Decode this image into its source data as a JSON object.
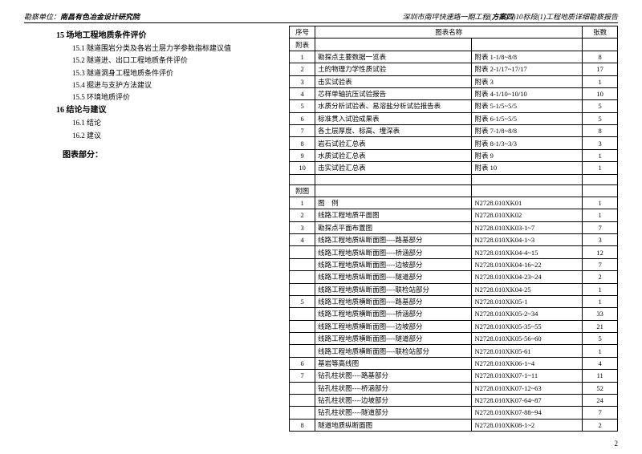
{
  "header": {
    "leftLabel": "勘察单位：",
    "leftOrg": "南昌有色冶金设计研究院",
    "rightPrefix": "深圳市南坪快速路一期工程(",
    "rightBold": "方案四",
    "rightSuffix": ")10标段(1)工程地质详细勘察报告"
  },
  "toc": {
    "s15": "15 场地工程地质条件评价",
    "s15_1": "15.1 隧道围岩分类及各岩土层力学参数指标建议值",
    "s15_2": "15.2 隧道进、出口工程地质条件评价",
    "s15_3": "15.3 隧道洞身工程地质条件评价",
    "s15_4": "15.4 掘进与支护方法建议",
    "s15_5": "15.5 环境地质评价",
    "s16": "16 结论与建议",
    "s16_1": "16.1 结论",
    "s16_2": "16.2 建议",
    "chartTitle": "图表部分："
  },
  "tableHead": {
    "num": "序号",
    "name": "图表名称",
    "count": "张数"
  },
  "sec1": "附表",
  "rows1": [
    {
      "n": "1",
      "name": "勘探点主要数据一览表",
      "tag": "附表 1-1/8~8/8",
      "c": "8"
    },
    {
      "n": "2",
      "name": "土的物理力学性质试验",
      "tag": "附表 2-1/17~17/17",
      "c": "17"
    },
    {
      "n": "3",
      "name": "击实试验表",
      "tag": "附表 3",
      "c": "1"
    },
    {
      "n": "4",
      "name": "芯样单轴抗压试验报告",
      "tag": "附表 4-1/10~10/10",
      "c": "10"
    },
    {
      "n": "5",
      "name": "水质分析试验表、易溶盐分析试验报告表",
      "tag": "附表 5-1/5~5/5",
      "c": "5"
    },
    {
      "n": "6",
      "name": "标准贯入试验成果表",
      "tag": "附表 6-1/5~5/5",
      "c": "5"
    },
    {
      "n": "7",
      "name": "各土层厚度、标高、埋深表",
      "tag": "附表 7-1/8~8/8",
      "c": "8"
    },
    {
      "n": "8",
      "name": "岩石试验汇总表",
      "tag": "附表 8-1/3~3/3",
      "c": "3"
    },
    {
      "n": "9",
      "name": "水质试验汇总表",
      "tag": "附表 9",
      "c": "1"
    },
    {
      "n": "10",
      "name": "击实试验汇总表",
      "tag": "附表 10",
      "c": "1"
    }
  ],
  "sec2": "附图",
  "rows2": [
    {
      "n": "1",
      "name": "图　例",
      "tag": "N2728.010XK01",
      "c": "1"
    },
    {
      "n": "2",
      "name": "线路工程地质平面图",
      "tag": "N2728.010XK02",
      "c": "1"
    },
    {
      "n": "3",
      "name": "勘探点平面布置图",
      "tag": "N2728.010XK03-1~7",
      "c": "7"
    },
    {
      "n": "4",
      "name": "线路工程地质纵断面图----路基部分",
      "tag": "N2728.010XK04-1~3",
      "c": "3"
    },
    {
      "n": "",
      "name": "线路工程地质纵断面图----桥涵部分",
      "tag": "N2728.010XK04-4~15",
      "c": "12"
    },
    {
      "n": "",
      "name": "线路工程地质纵断面图----边坡部分",
      "tag": "N2728.010XK04-16~22",
      "c": "7"
    },
    {
      "n": "",
      "name": "线路工程地质纵断面图----隧道部分",
      "tag": "N2728.010XK04-23~24",
      "c": "2"
    },
    {
      "n": "",
      "name": "线路工程地质纵断面图----联检站部分",
      "tag": "N2728.010XK04-25",
      "c": "1"
    },
    {
      "n": "5",
      "name": "线路工程地质横断面图----路基部分",
      "tag": "N2728.010XK05-1",
      "c": "1"
    },
    {
      "n": "",
      "name": "线路工程地质横断面图----桥涵部分",
      "tag": "N2728.010XK05-2~34",
      "c": "33"
    },
    {
      "n": "",
      "name": "线路工程地质横断面图----边坡部分",
      "tag": "N2728.010XK05-35~55",
      "c": "21"
    },
    {
      "n": "",
      "name": "线路工程地质横断面图----隧道部分",
      "tag": "N2728.010XK05-56~60",
      "c": "5"
    },
    {
      "n": "",
      "name": "线路工程地质横断面图----联检站部分",
      "tag": "N2728.010XK05-61",
      "c": "1"
    },
    {
      "n": "6",
      "name": "基岩等高线图",
      "tag": "N2728.010XK06-1~4",
      "c": "4"
    },
    {
      "n": "7",
      "name": "钻孔柱状图----路基部分",
      "tag": "N2728.010XK07-1~11",
      "c": "11"
    },
    {
      "n": "",
      "name": "钻孔柱状图----桥涵部分",
      "tag": "N2728.010XK07-12~63",
      "c": "52"
    },
    {
      "n": "",
      "name": "钻孔柱状图----边坡部分",
      "tag": "N2728.010XK07-64~87",
      "c": "24"
    },
    {
      "n": "",
      "name": "钻孔柱状图----隧道部分",
      "tag": "N2728.010XK07-88~94",
      "c": "7"
    },
    {
      "n": "8",
      "name": "隧道地质纵断面图",
      "tag": "N2728.010XK08-1~2",
      "c": "2"
    }
  ],
  "pageNum": "2"
}
